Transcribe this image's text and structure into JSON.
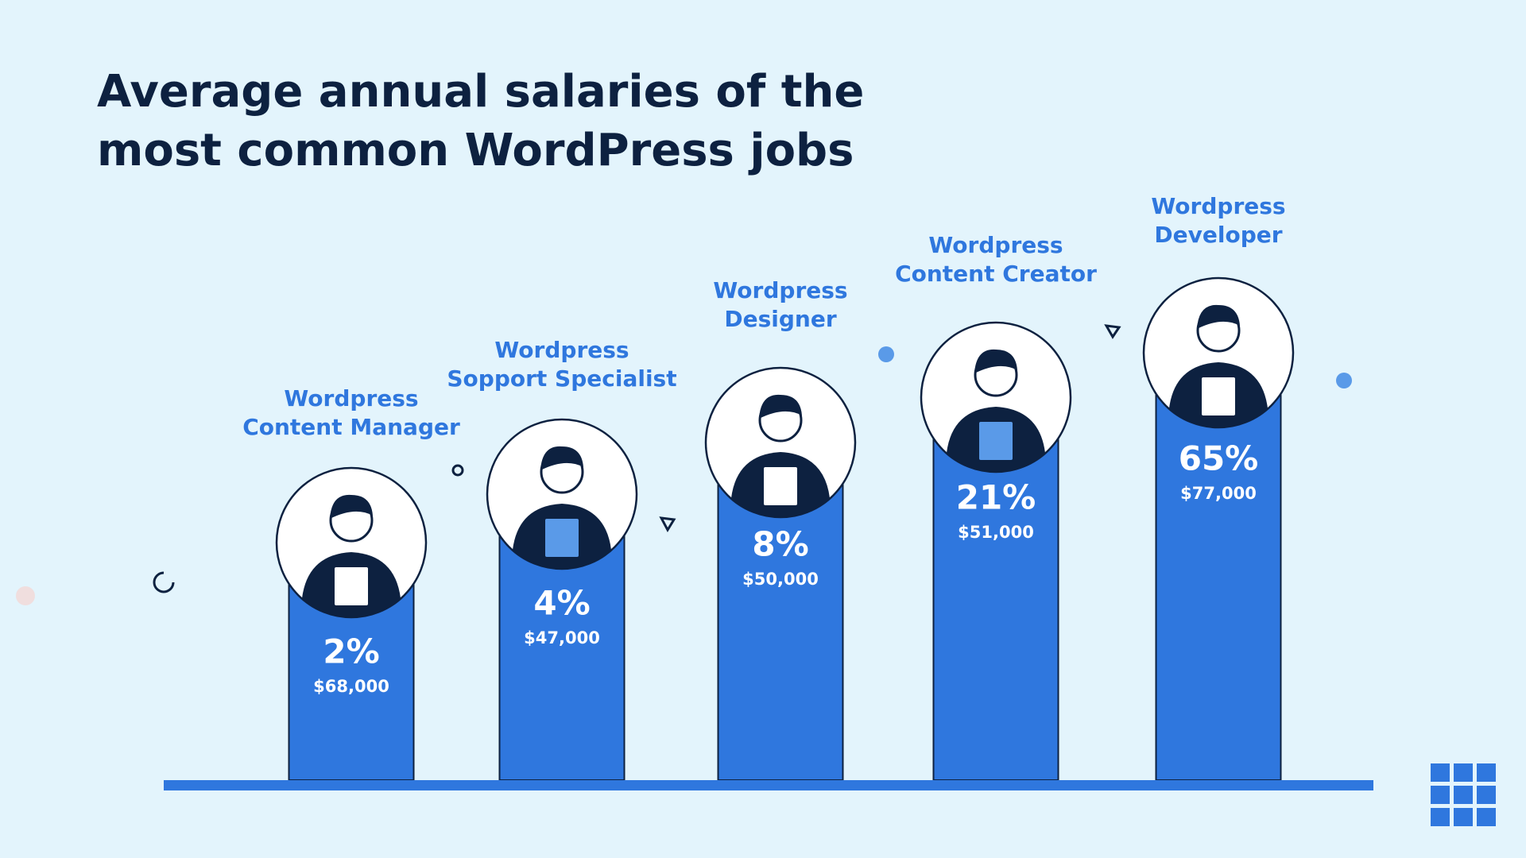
{
  "title": [
    "Average annual salaries of the",
    "most common WordPress jobs"
  ],
  "items": [
    {
      "name": [
        "Wordpress",
        "Content Manager"
      ],
      "share": "2%",
      "salary": "$68,000"
    },
    {
      "name": [
        "Wordpress",
        "Sopport Specialist"
      ],
      "share": "4%",
      "salary": "$47,000"
    },
    {
      "name": [
        "Wordpress",
        "Designer"
      ],
      "share": "8%",
      "salary": "$50,000"
    },
    {
      "name": [
        "Wordpress",
        "Content Creator"
      ],
      "share": "21%",
      "salary": "$51,000"
    },
    {
      "name": [
        "Wordpress",
        "Developer"
      ],
      "share": "65%",
      "salary": "$77,000"
    }
  ]
}
